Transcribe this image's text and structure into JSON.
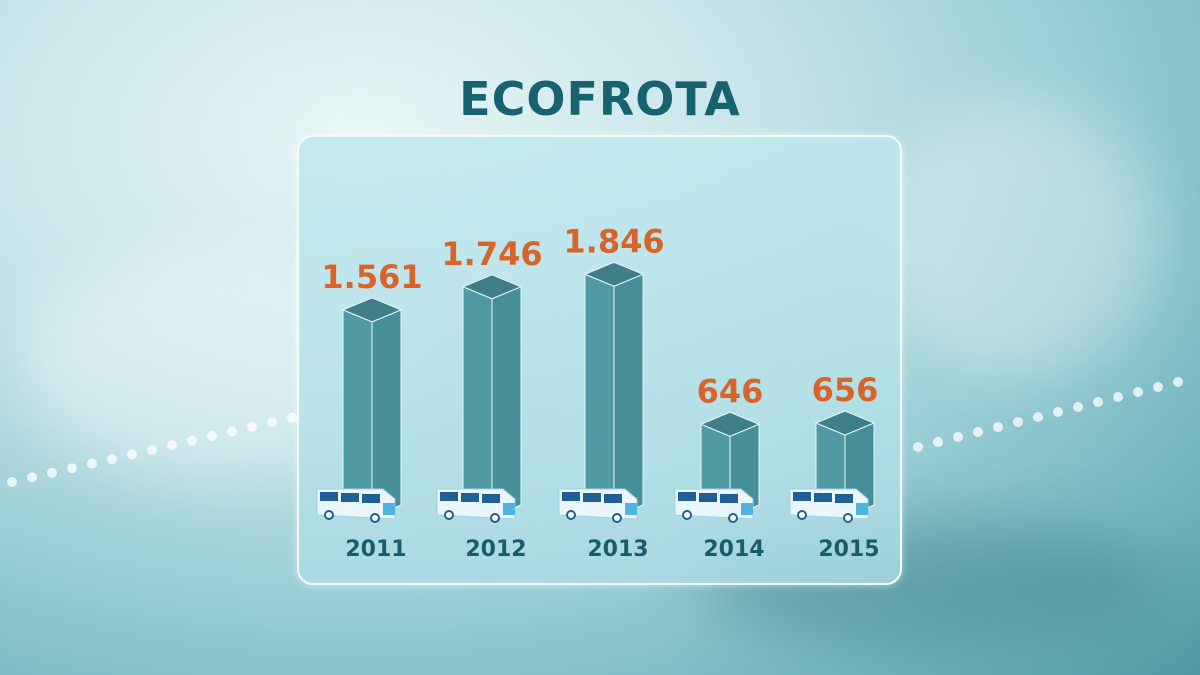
{
  "title": "ECOFROTA",
  "chart_data": {
    "type": "bar",
    "title": "ECOFROTA",
    "categories": [
      "2011",
      "2012",
      "2013",
      "2014",
      "2015"
    ],
    "values": [
      1561,
      1746,
      1846,
      646,
      656
    ],
    "value_labels": [
      "1.561",
      "1.746",
      "1.846",
      "646",
      "656"
    ],
    "grid": false,
    "colors": {
      "bar": "#4d98a1",
      "label": "#d9642a",
      "year": "#1a5d6a",
      "title": "#17636d",
      "bus": "#2b6fa3"
    }
  }
}
